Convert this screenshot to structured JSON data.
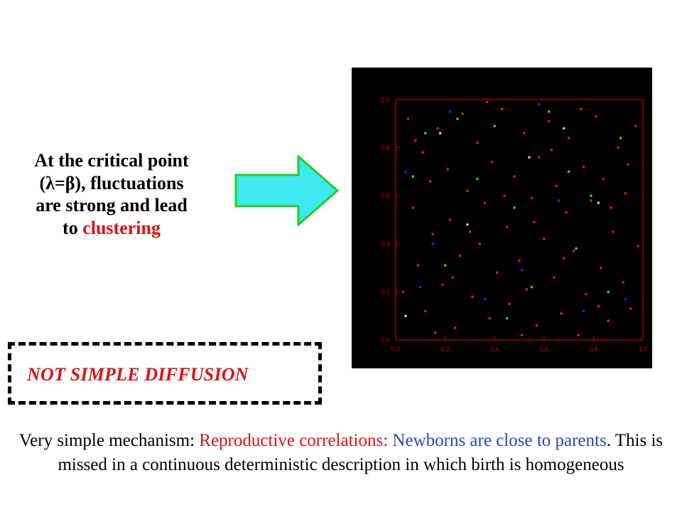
{
  "heading": {
    "line1": "At the critical point",
    "line2_prefix": "(",
    "lambda": "λ",
    "equals": "=",
    "beta": "β",
    "line2_suffix": "), fluctuations",
    "line3": "are  strong and lead",
    "line4_prefix": "to ",
    "line4_highlight": "clustering"
  },
  "badge": {
    "label": "NOT SIMPLE DIFFUSION"
  },
  "footer": {
    "part1": "Very simple mechanism: ",
    "part2": "Reproductive correlations:",
    "part3": " Newborns are close to parents",
    "part4": ". This is missed in a continuous deterministic description in which birth is homogeneous"
  },
  "colors": {
    "accent_red": "#e01010",
    "accent_blue": "#3040c0",
    "arrow_fill": "#3de8f0",
    "arrow_stroke": "#20d020",
    "plot_frame": "#cc0000"
  },
  "icons": {
    "arrow": "right-arrow-icon"
  },
  "chart_data": {
    "type": "scatter",
    "title": "",
    "xlabel": "",
    "ylabel": "",
    "xlim": [
      0,
      1
    ],
    "ylim": [
      0,
      1
    ],
    "x_ticks": [
      "0.0",
      "0.2",
      "0.4",
      "0.6",
      "0.8",
      "1.0"
    ],
    "y_ticks": [
      "0.0",
      "0.2",
      "0.4",
      "0.6",
      "0.8",
      "1.0"
    ],
    "background": "#000000",
    "grid": false,
    "series": [
      {
        "color": "#ff1010",
        "points": [
          [
            0.05,
            0.92
          ],
          [
            0.07,
            0.55
          ],
          [
            0.09,
            0.31
          ],
          [
            0.11,
            0.78
          ],
          [
            0.12,
            0.12
          ],
          [
            0.14,
            0.66
          ],
          [
            0.15,
            0.44
          ],
          [
            0.17,
            0.88
          ],
          [
            0.19,
            0.23
          ],
          [
            0.21,
            0.71
          ],
          [
            0.22,
            0.5
          ],
          [
            0.24,
            0.05
          ],
          [
            0.26,
            0.35
          ],
          [
            0.27,
            0.94
          ],
          [
            0.29,
            0.62
          ],
          [
            0.31,
            0.18
          ],
          [
            0.33,
            0.82
          ],
          [
            0.34,
            0.4
          ],
          [
            0.36,
            0.57
          ],
          [
            0.38,
            0.09
          ],
          [
            0.39,
            0.74
          ],
          [
            0.41,
            0.28
          ],
          [
            0.43,
            0.96
          ],
          [
            0.45,
            0.47
          ],
          [
            0.46,
            0.15
          ],
          [
            0.48,
            0.68
          ],
          [
            0.5,
            0.33
          ],
          [
            0.52,
            0.86
          ],
          [
            0.53,
            0.21
          ],
          [
            0.55,
            0.59
          ],
          [
            0.57,
            0.06
          ],
          [
            0.58,
            0.76
          ],
          [
            0.6,
            0.42
          ],
          [
            0.62,
            0.91
          ],
          [
            0.64,
            0.26
          ],
          [
            0.65,
            0.64
          ],
          [
            0.67,
            0.11
          ],
          [
            0.69,
            0.53
          ],
          [
            0.7,
            0.84
          ],
          [
            0.72,
            0.37
          ],
          [
            0.74,
            0.02
          ],
          [
            0.76,
            0.72
          ],
          [
            0.77,
            0.19
          ],
          [
            0.79,
            0.58
          ],
          [
            0.81,
            0.93
          ],
          [
            0.83,
            0.3
          ],
          [
            0.84,
            0.67
          ],
          [
            0.86,
            0.08
          ],
          [
            0.88,
            0.45
          ],
          [
            0.9,
            0.8
          ],
          [
            0.92,
            0.24
          ],
          [
            0.93,
            0.61
          ],
          [
            0.95,
            0.13
          ],
          [
            0.97,
            0.89
          ],
          [
            0.98,
            0.39
          ],
          [
            0.03,
            0.2
          ],
          [
            0.08,
            0.83
          ],
          [
            0.16,
            0.03
          ],
          [
            0.23,
            0.26
          ],
          [
            0.3,
            0.45
          ],
          [
            0.37,
            0.99
          ],
          [
            0.44,
            0.6
          ],
          [
            0.51,
            0.02
          ],
          [
            0.56,
            0.49
          ],
          [
            0.63,
            0.79
          ],
          [
            0.68,
            0.34
          ],
          [
            0.75,
            0.96
          ],
          [
            0.82,
            0.14
          ],
          [
            0.87,
            0.55
          ],
          [
            0.94,
            0.73
          ]
        ]
      },
      {
        "color": "#20e020",
        "points": [
          [
            0.07,
            0.68
          ],
          [
            0.12,
            0.86
          ],
          [
            0.25,
            0.92
          ],
          [
            0.33,
            0.67
          ],
          [
            0.4,
            0.89
          ],
          [
            0.48,
            0.55
          ],
          [
            0.55,
            0.22
          ],
          [
            0.62,
            0.95
          ],
          [
            0.7,
            0.7
          ],
          [
            0.79,
            0.6
          ],
          [
            0.86,
            0.2
          ],
          [
            0.2,
            0.31
          ],
          [
            0.45,
            0.09
          ],
          [
            0.73,
            0.38
          ],
          [
            0.91,
            0.84
          ]
        ]
      },
      {
        "color": "#2020ff",
        "points": [
          [
            0.04,
            0.7
          ],
          [
            0.1,
            0.22
          ],
          [
            0.22,
            0.95
          ],
          [
            0.36,
            0.17
          ],
          [
            0.51,
            0.29
          ],
          [
            0.66,
            0.58
          ],
          [
            0.76,
            0.12
          ],
          [
            0.93,
            0.17
          ],
          [
            0.15,
            0.4
          ],
          [
            0.58,
            0.98
          ]
        ]
      },
      {
        "color": "#ffd020",
        "points": [
          [
            0.04,
            0.1
          ],
          [
            0.18,
            0.86
          ],
          [
            0.29,
            0.48
          ],
          [
            0.54,
            0.76
          ],
          [
            0.68,
            0.88
          ],
          [
            0.82,
            0.57
          ]
        ]
      }
    ]
  }
}
